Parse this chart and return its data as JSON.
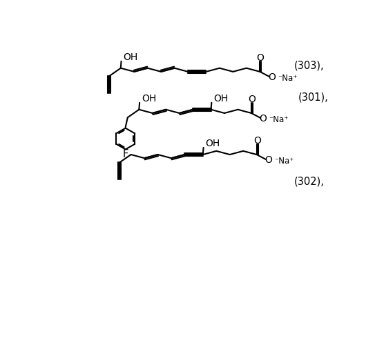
{
  "background_color": "#ffffff",
  "line_color": "#000000",
  "line_width": 1.5,
  "font_size": 10.5,
  "label_301": "(301),",
  "label_302": "(302),",
  "label_303": "(303),"
}
